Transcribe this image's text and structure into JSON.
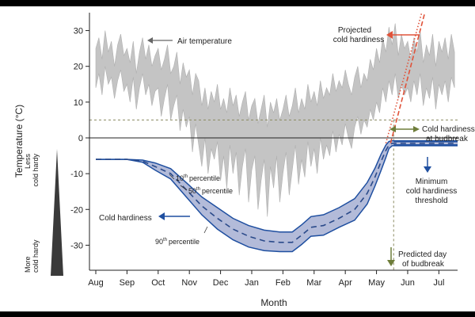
{
  "colors": {
    "air": "#c4c4c4",
    "air_line": "#b0b0b0",
    "band": "#b3bbd9",
    "band_edge": "#1f4fa0",
    "median": "#2a4a8a",
    "arrow_blue": "#1f4fa0",
    "arrow_red": "#e0533a",
    "arrow_green": "#6e7d3a",
    "grey_text": "#666666",
    "dashed_line": "#8a8a60",
    "triangle": "#3a3a3a"
  },
  "chart_data": {
    "type": "line",
    "xlabel": "Month",
    "ylabel": "Temperature (°C)",
    "categories": [
      "Aug",
      "Sep",
      "Oct",
      "Nov",
      "Dec",
      "Jan",
      "Feb",
      "Mar",
      "Apr",
      "May",
      "Jun",
      "Jul"
    ],
    "yticks": [
      30,
      20,
      10,
      0,
      -10,
      -20,
      -30
    ],
    "ylim": [
      -37,
      35
    ],
    "xlim": [
      0,
      11.6
    ],
    "zero_line": 0,
    "budbreak_hardiness_level": 5,
    "minimum_hardiness_threshold": -1.5,
    "budbreak_month_position": 9.55,
    "series": [
      {
        "name": "Air temperature",
        "x": [
          0,
          0.1,
          0.2,
          0.3,
          0.4,
          0.5,
          0.6,
          0.7,
          0.8,
          0.9,
          1.0,
          1.1,
          1.2,
          1.3,
          1.4,
          1.5,
          1.6,
          1.7,
          1.8,
          1.9,
          2.0,
          2.1,
          2.2,
          2.3,
          2.4,
          2.5,
          2.6,
          2.7,
          2.8,
          2.9,
          3.0,
          3.1,
          3.2,
          3.3,
          3.4,
          3.5,
          3.6,
          3.7,
          3.8,
          3.9,
          4.0,
          4.1,
          4.2,
          4.3,
          4.4,
          4.5,
          4.6,
          4.7,
          4.8,
          4.9,
          5.0,
          5.1,
          5.2,
          5.3,
          5.4,
          5.5,
          5.6,
          5.7,
          5.8,
          5.9,
          6.0,
          6.1,
          6.2,
          6.3,
          6.4,
          6.5,
          6.6,
          6.7,
          6.8,
          6.9,
          7.0,
          7.1,
          7.2,
          7.3,
          7.4,
          7.5,
          7.6,
          7.7,
          7.8,
          7.9,
          8.0,
          8.1,
          8.2,
          8.3,
          8.4,
          8.5,
          8.6,
          8.7,
          8.8,
          8.9,
          9.0,
          9.1,
          9.2,
          9.3,
          9.4,
          9.5,
          9.6,
          9.7,
          9.8,
          9.9,
          10.0,
          10.1,
          10.2,
          10.3,
          10.4,
          10.5,
          10.6,
          10.7,
          10.8,
          10.9,
          11.0,
          11.1,
          11.2,
          11.3,
          11.4,
          11.5
        ],
        "upper": [
          25,
          28,
          22,
          30,
          24,
          27,
          20,
          26,
          29,
          23,
          25,
          21,
          27,
          18,
          24,
          28,
          22,
          26,
          20,
          23,
          25,
          19,
          22,
          26,
          18,
          20,
          24,
          15,
          21,
          17,
          19,
          12,
          18,
          16,
          9,
          14,
          8,
          13,
          10,
          15,
          8,
          11,
          7,
          14,
          9,
          12,
          6,
          10,
          13,
          5,
          9,
          11,
          4,
          8,
          12,
          3,
          10,
          7,
          11,
          5,
          8,
          12,
          6,
          9,
          14,
          7,
          11,
          8,
          15,
          10,
          13,
          9,
          16,
          11,
          14,
          12,
          18,
          13,
          16,
          14,
          19,
          15,
          12,
          17,
          20,
          14,
          18,
          16,
          22,
          19,
          25,
          21,
          28,
          24,
          31,
          26,
          32,
          23,
          29,
          25,
          27,
          22,
          28,
          24,
          30,
          21,
          26,
          23,
          29,
          20,
          27,
          24,
          28,
          22,
          29,
          24
        ],
        "lower": [
          14,
          18,
          12,
          20,
          15,
          17,
          11,
          16,
          19,
          13,
          15,
          10,
          17,
          8,
          14,
          18,
          12,
          15,
          9,
          13,
          14,
          6,
          11,
          15,
          5,
          9,
          12,
          2,
          8,
          3,
          6,
          -4,
          4,
          -2,
          -8,
          0,
          -10,
          -3,
          -6,
          -1,
          -12,
          -5,
          -14,
          -2,
          -10,
          -4,
          -16,
          -8,
          -3,
          -18,
          -9,
          -5,
          -20,
          -12,
          -6,
          -22,
          -8,
          -14,
          -5,
          -18,
          -10,
          -4,
          -16,
          -9,
          -2,
          -13,
          -6,
          -11,
          -1,
          -8,
          -3,
          -10,
          0,
          -6,
          -2,
          -5,
          2,
          -4,
          1,
          -2,
          4,
          0,
          -3,
          3,
          6,
          1,
          5,
          3,
          8,
          5,
          10,
          7,
          14,
          10,
          16,
          12,
          18,
          11,
          15,
          12,
          14,
          10,
          16,
          12,
          18,
          9,
          14,
          11,
          17,
          8,
          15,
          12,
          16,
          10,
          17,
          14
        ],
        "color_key": "air"
      },
      {
        "name": "Cold hardiness 10th percentile",
        "x": [
          0,
          1.0,
          1.5,
          1.9,
          2.4,
          2.9,
          3.4,
          3.9,
          4.4,
          4.9,
          5.4,
          5.9,
          6.3,
          6.6,
          6.9,
          7.3,
          7.8,
          8.3,
          8.7,
          8.95,
          9.15,
          9.3,
          9.4,
          9.5,
          9.6,
          11.6
        ],
        "y": [
          -6,
          -6,
          -6.2,
          -7,
          -8.6,
          -12.5,
          -16.5,
          -19.5,
          -22.5,
          -24.5,
          -25.8,
          -26.3,
          -26.3,
          -24.3,
          -22,
          -21.5,
          -19.5,
          -17,
          -12.5,
          -8.5,
          -4.5,
          -2,
          -1,
          -0.8,
          -0.8,
          -0.8
        ]
      },
      {
        "name": "Cold hardiness median",
        "x": [
          0,
          1.0,
          1.5,
          1.9,
          2.4,
          2.9,
          3.4,
          3.9,
          4.4,
          4.9,
          5.4,
          5.9,
          6.3,
          6.6,
          6.9,
          7.3,
          7.8,
          8.3,
          8.7,
          8.95,
          9.15,
          9.3,
          9.4,
          9.5,
          9.6,
          11.6
        ],
        "y": [
          -6,
          -6,
          -6.5,
          -8,
          -10,
          -14.5,
          -19,
          -22.5,
          -25.5,
          -27.5,
          -28.8,
          -29.2,
          -29.2,
          -27.2,
          -25,
          -24.5,
          -22.5,
          -20,
          -15.5,
          -11,
          -6.5,
          -3.5,
          -2,
          -1.5,
          -1.5,
          -1.5
        ]
      },
      {
        "name": "Cold hardiness 90th percentile",
        "x": [
          0,
          1.0,
          1.5,
          1.9,
          2.4,
          2.9,
          3.4,
          3.9,
          4.4,
          4.9,
          5.4,
          5.9,
          6.3,
          6.6,
          6.9,
          7.3,
          7.8,
          8.3,
          8.7,
          8.95,
          9.15,
          9.3,
          9.4,
          9.5,
          9.6,
          11.6
        ],
        "y": [
          -6,
          -6,
          -6.8,
          -9,
          -11.5,
          -16.5,
          -21.5,
          -25.5,
          -28.5,
          -30.5,
          -31.5,
          -31.8,
          -31.8,
          -29.8,
          -27.5,
          -27.2,
          -25,
          -23,
          -18.5,
          -13.5,
          -9,
          -5.5,
          -3,
          -2.2,
          -2.2,
          -2.2
        ]
      }
    ],
    "projection_lines": [
      {
        "name": "Projected cold hardiness (dashed)",
        "x": [
          9.45,
          10.55
        ],
        "y": [
          -1.5,
          35
        ],
        "style": "dashed"
      },
      {
        "name": "Projected cold hardiness (dotted)",
        "x": [
          9.3,
          10.45
        ],
        "y": [
          -1.5,
          35
        ],
        "style": "dotted"
      }
    ],
    "annotations": {
      "air_temperature": "Air temperature",
      "projected_line1": "Projected",
      "projected_line2": "cold hardiness",
      "budbreak_line1": "Cold hardiness",
      "budbreak_line2": "at budbreak",
      "minimum_line1": "Minimum",
      "minimum_line2": "cold hardiness",
      "minimum_line3": "threshold",
      "predicted_line1": "Predicted day",
      "predicted_line2": "of budbreak",
      "cold_hardiness": "Cold hardiness",
      "p10_number": "10",
      "p50_number": "50",
      "p90_number": "90",
      "p_suffix": "th",
      "percentile_word": "percentile",
      "less_line1": "Less",
      "less_line2": "cold hardy",
      "more_line1": "More",
      "more_line2": "cold hardy"
    }
  }
}
